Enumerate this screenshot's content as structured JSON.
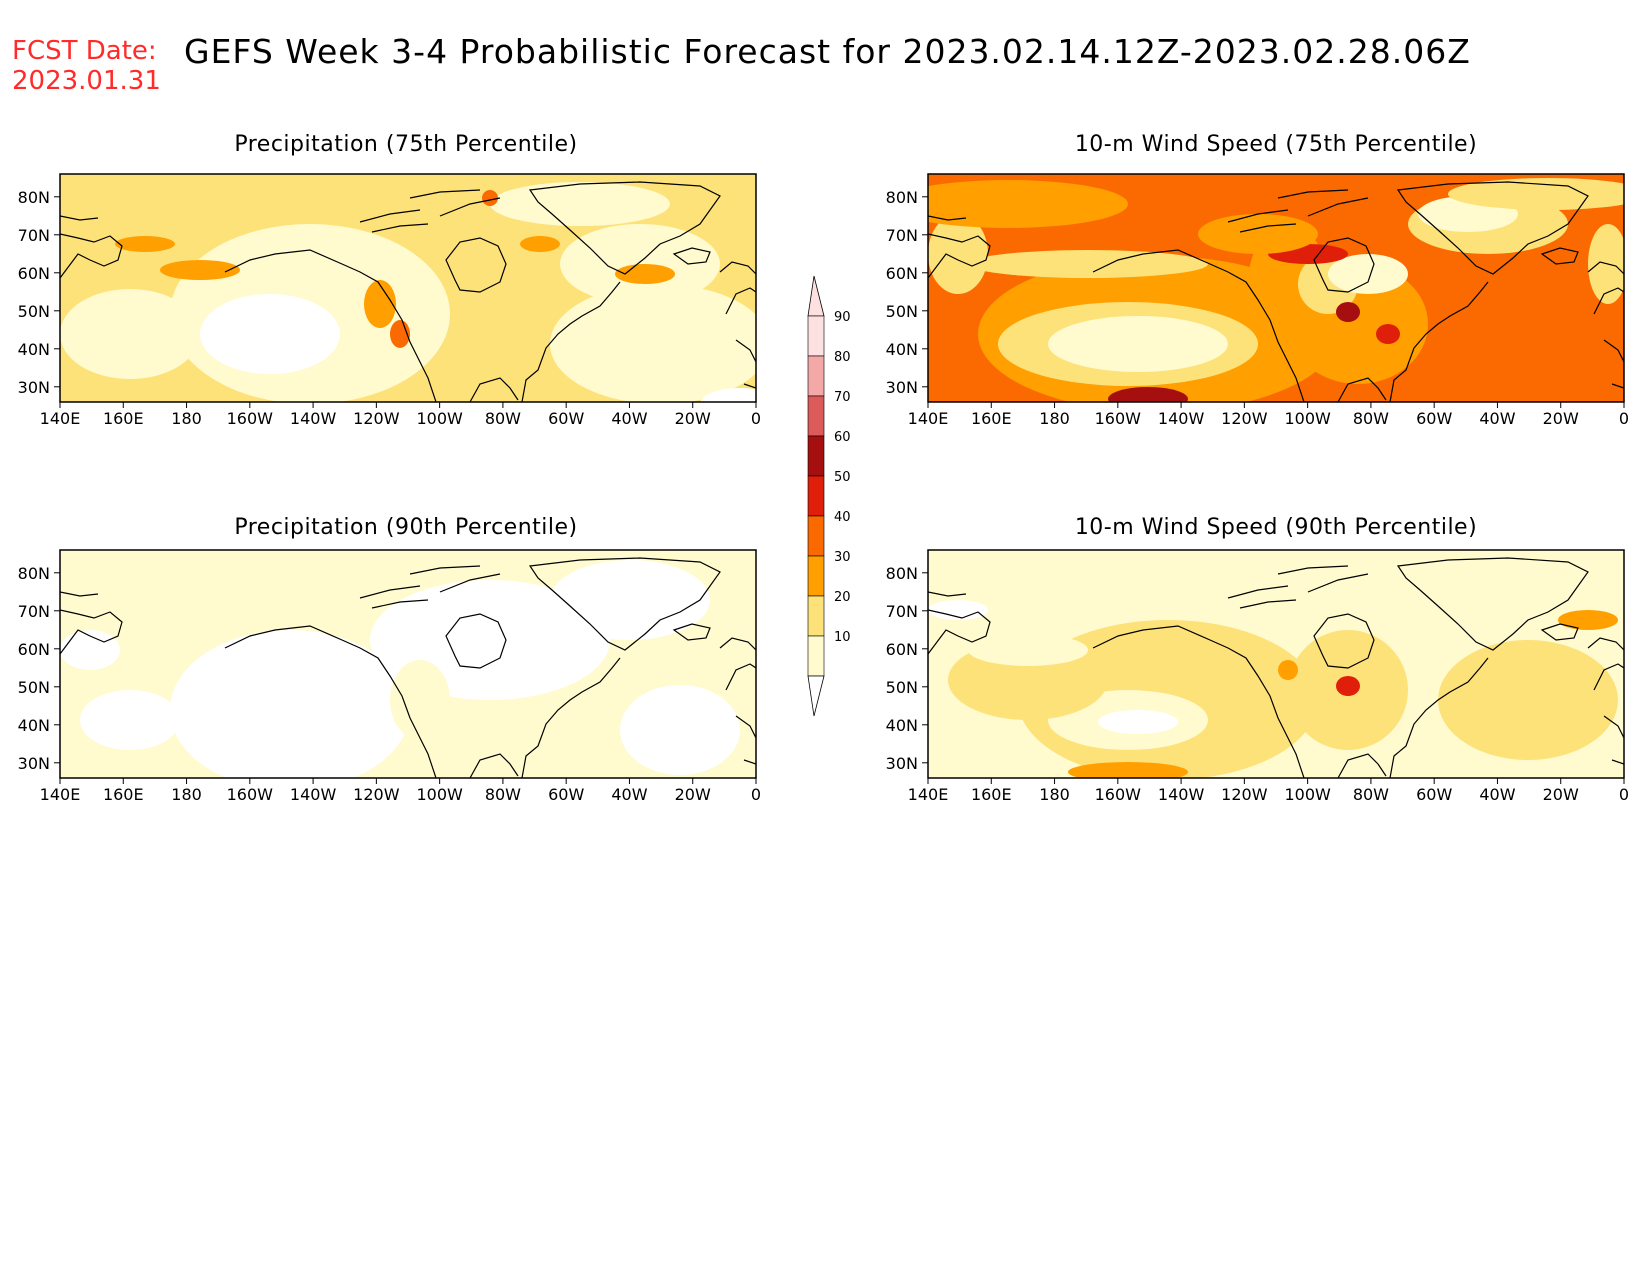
{
  "header": {
    "fcst_label": "FCST Date:",
    "fcst_date": "2023.01.31",
    "title": "GEFS Week 3-4 Probabilistic Forecast for 2023.02.14.12Z-2023.02.28.06Z"
  },
  "axes": {
    "lon_labels": [
      "140E",
      "160E",
      "180",
      "160W",
      "140W",
      "120W",
      "100W",
      "80W",
      "60W",
      "40W",
      "20W",
      "0"
    ],
    "lat_labels": [
      "80N",
      "70N",
      "60N",
      "50N",
      "40N",
      "30N"
    ]
  },
  "panels": [
    {
      "id": "precip-75",
      "title": "Precipitation (75th Percentile)",
      "level": "moderate"
    },
    {
      "id": "wind-75",
      "title": "10-m Wind Speed (75th Percentile)",
      "level": "high"
    },
    {
      "id": "precip-90",
      "title": "Precipitation (90th Percentile)",
      "level": "low"
    },
    {
      "id": "wind-90",
      "title": "10-m Wind Speed (90th Percentile)",
      "level": "moderate-low"
    }
  ],
  "colorbar": {
    "labels": [
      "90",
      "80",
      "70",
      "60",
      "50",
      "40",
      "30",
      "20",
      "10"
    ],
    "colors": [
      "#fde0e0",
      "#f4a8a8",
      "#dd5a5a",
      "#a50f0f",
      "#e01f0a",
      "#fb6a00",
      "#ff9f00",
      "#fde27a",
      "#fffbcf"
    ]
  },
  "palette": {
    "white": "#ffffff",
    "c10": "#fffbcf",
    "c20": "#fde27a",
    "c30": "#ff9f00",
    "c40": "#fb6a00",
    "c50": "#e01f0a",
    "c60": "#a50f0f",
    "fcst_red": "#ff2a2a"
  }
}
